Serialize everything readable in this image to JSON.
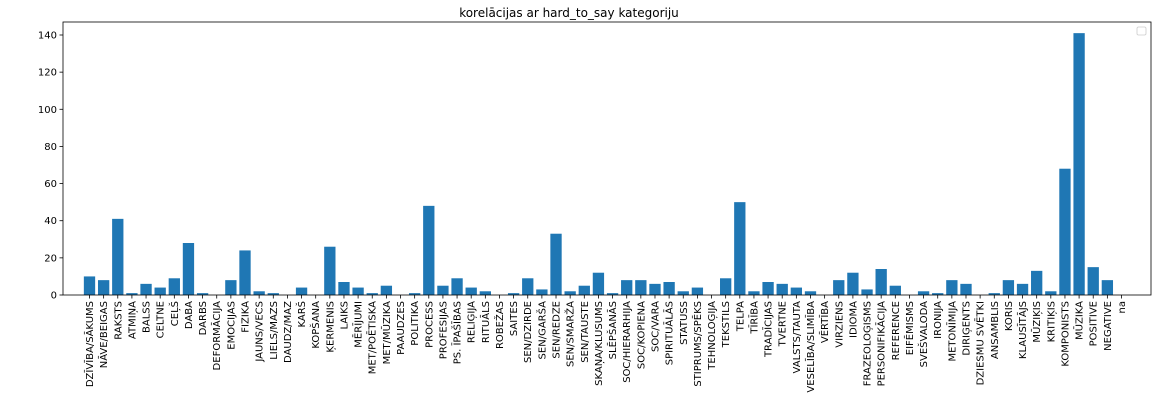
{
  "chart_data": {
    "type": "bar",
    "title": "korelācijas ar hard_to_say kategoriju",
    "xlabel": "",
    "ylabel": "",
    "ylim": [
      0,
      147
    ],
    "yticks": [
      0,
      20,
      40,
      60,
      80,
      100,
      120,
      140
    ],
    "grid": false,
    "legend": "top-right",
    "bar_color": "#1f77b4",
    "categories": [
      "DZĪVĪBA/SĀKUMS",
      "NĀVE/BEIGAS",
      "RAKSTS",
      "ATMIŅA",
      "BALSS",
      "CELTNE",
      "CEĻŠ",
      "DABA",
      "DARBS",
      "DEFORMĀCIJA",
      "EMOCIJAS",
      "FIZIKA",
      "JAUNS/VECS",
      "LIELS/MAZS",
      "DAUDZ/MAZ",
      "KARŠ",
      "KOPŠANA",
      "ĶERMENIS",
      "LAIKS",
      "MĒRĪJUMI",
      "MET/POĒTISKA",
      "MET/MŪZIKA",
      "PAAUDZES",
      "POLITIKA",
      "PROCESS",
      "PROFESIJAS",
      "PS. ĪPAŠĪBAS",
      "RELIĢIJA",
      "RITUĀLS",
      "ROBEŽAS",
      "SAITES",
      "SEN/DZIRDE",
      "SEN/GARŠA",
      "SEN/REDZE",
      "SEN/SMARŽA",
      "SEN/TAUSTE",
      "SKAŅA/KLUSUMS",
      "SLĒPŠANĀS",
      "SOC/HIERARHIJA",
      "SOC/KOPIENA",
      "SOC/VARA",
      "SPIRITUĀLĀS",
      "STATUSS",
      "STIPRUMS/SPĒKS",
      "TEHNOLOĢIJA",
      "TEKSTILS",
      "TELPA",
      "TĪRĪBA",
      "TRADĪCIJAS",
      "TVERTNE",
      "VALSTS/TAUTA",
      "VESELĪBA/SLIMĪBA",
      "VĒRTĪBA",
      "VIRZIENS",
      "IDIOMA",
      "FRAZEOLOĢISMS",
      "PERSONIFIKĀCIJA",
      "REFERENCE",
      "EIFĒMISMS",
      "SVEŠVALODA",
      "IRONIJA",
      "METONĪMIJA",
      "DIRIĢENTS",
      "DZIESMU SVĒTKI",
      "ANSAMBLIS",
      "KORIS",
      "KLAUSĪTĀJS",
      "MŪZIĶIS",
      "KRITIĶIS",
      "KOMPONISTS",
      "MŪZIKA",
      "POSITIVE",
      "NEGATIVE",
      "na"
    ],
    "values": [
      10,
      8,
      41,
      1,
      6,
      4,
      9,
      28,
      1,
      0,
      8,
      24,
      2,
      1,
      0,
      4,
      0,
      26,
      7,
      4,
      1,
      5,
      0,
      1,
      48,
      5,
      9,
      4,
      2,
      0,
      1,
      9,
      3,
      33,
      2,
      5,
      12,
      1,
      8,
      8,
      6,
      7,
      2,
      4,
      0,
      9,
      50,
      2,
      7,
      6,
      4,
      2,
      0,
      8,
      12,
      3,
      14,
      5,
      0,
      2,
      1,
      8,
      6,
      0,
      1,
      8,
      6,
      13,
      2,
      68,
      141,
      15,
      8,
      0
    ]
  }
}
